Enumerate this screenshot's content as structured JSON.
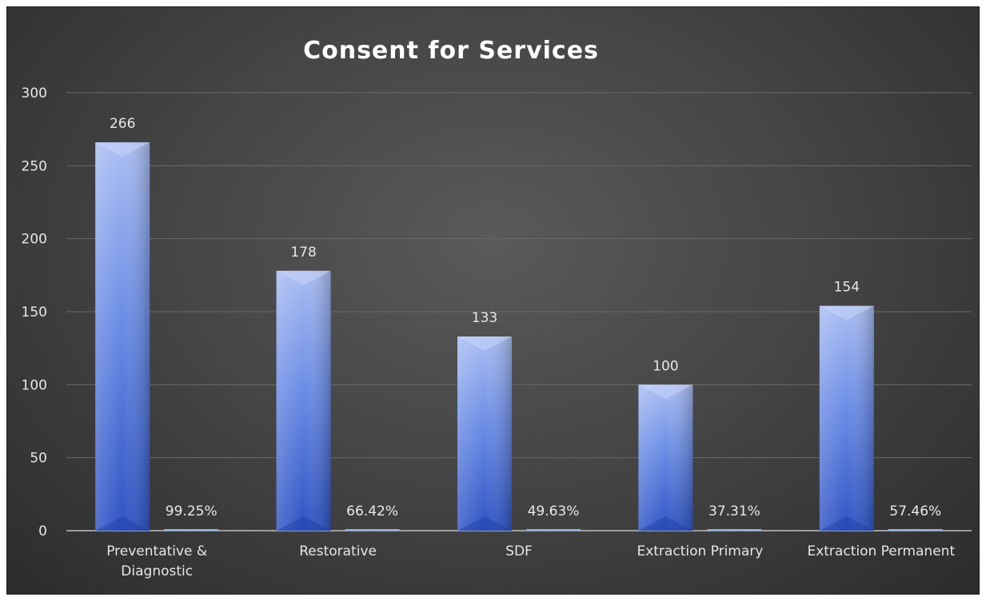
{
  "chart_data": {
    "type": "bar",
    "title": "Consent for Services",
    "xlabel": "",
    "ylabel": "",
    "ylim": [
      0,
      300
    ],
    "yticks": [
      0,
      50,
      100,
      150,
      200,
      250,
      300
    ],
    "grid": true,
    "legend": "none",
    "categories": [
      [
        "Preventative &",
        "Diagnostic"
      ],
      [
        "Restorative"
      ],
      [
        "SDF"
      ],
      [
        "Extraction Primary"
      ],
      [
        "Extraction Permanent"
      ]
    ],
    "series": [
      {
        "values": [
          266,
          178,
          133,
          100,
          154
        ],
        "labels": [
          "266",
          "178",
          "133",
          "100",
          "154"
        ],
        "color": "#3a5fd0"
      },
      {
        "values": [
          0.9925,
          0.6642,
          0.4963,
          0.3731,
          0.5746
        ],
        "labels": [
          "99.25%",
          "66.42%",
          "49.63%",
          "37.31%",
          "57.46%"
        ],
        "color": "#8fb3e8"
      }
    ]
  }
}
